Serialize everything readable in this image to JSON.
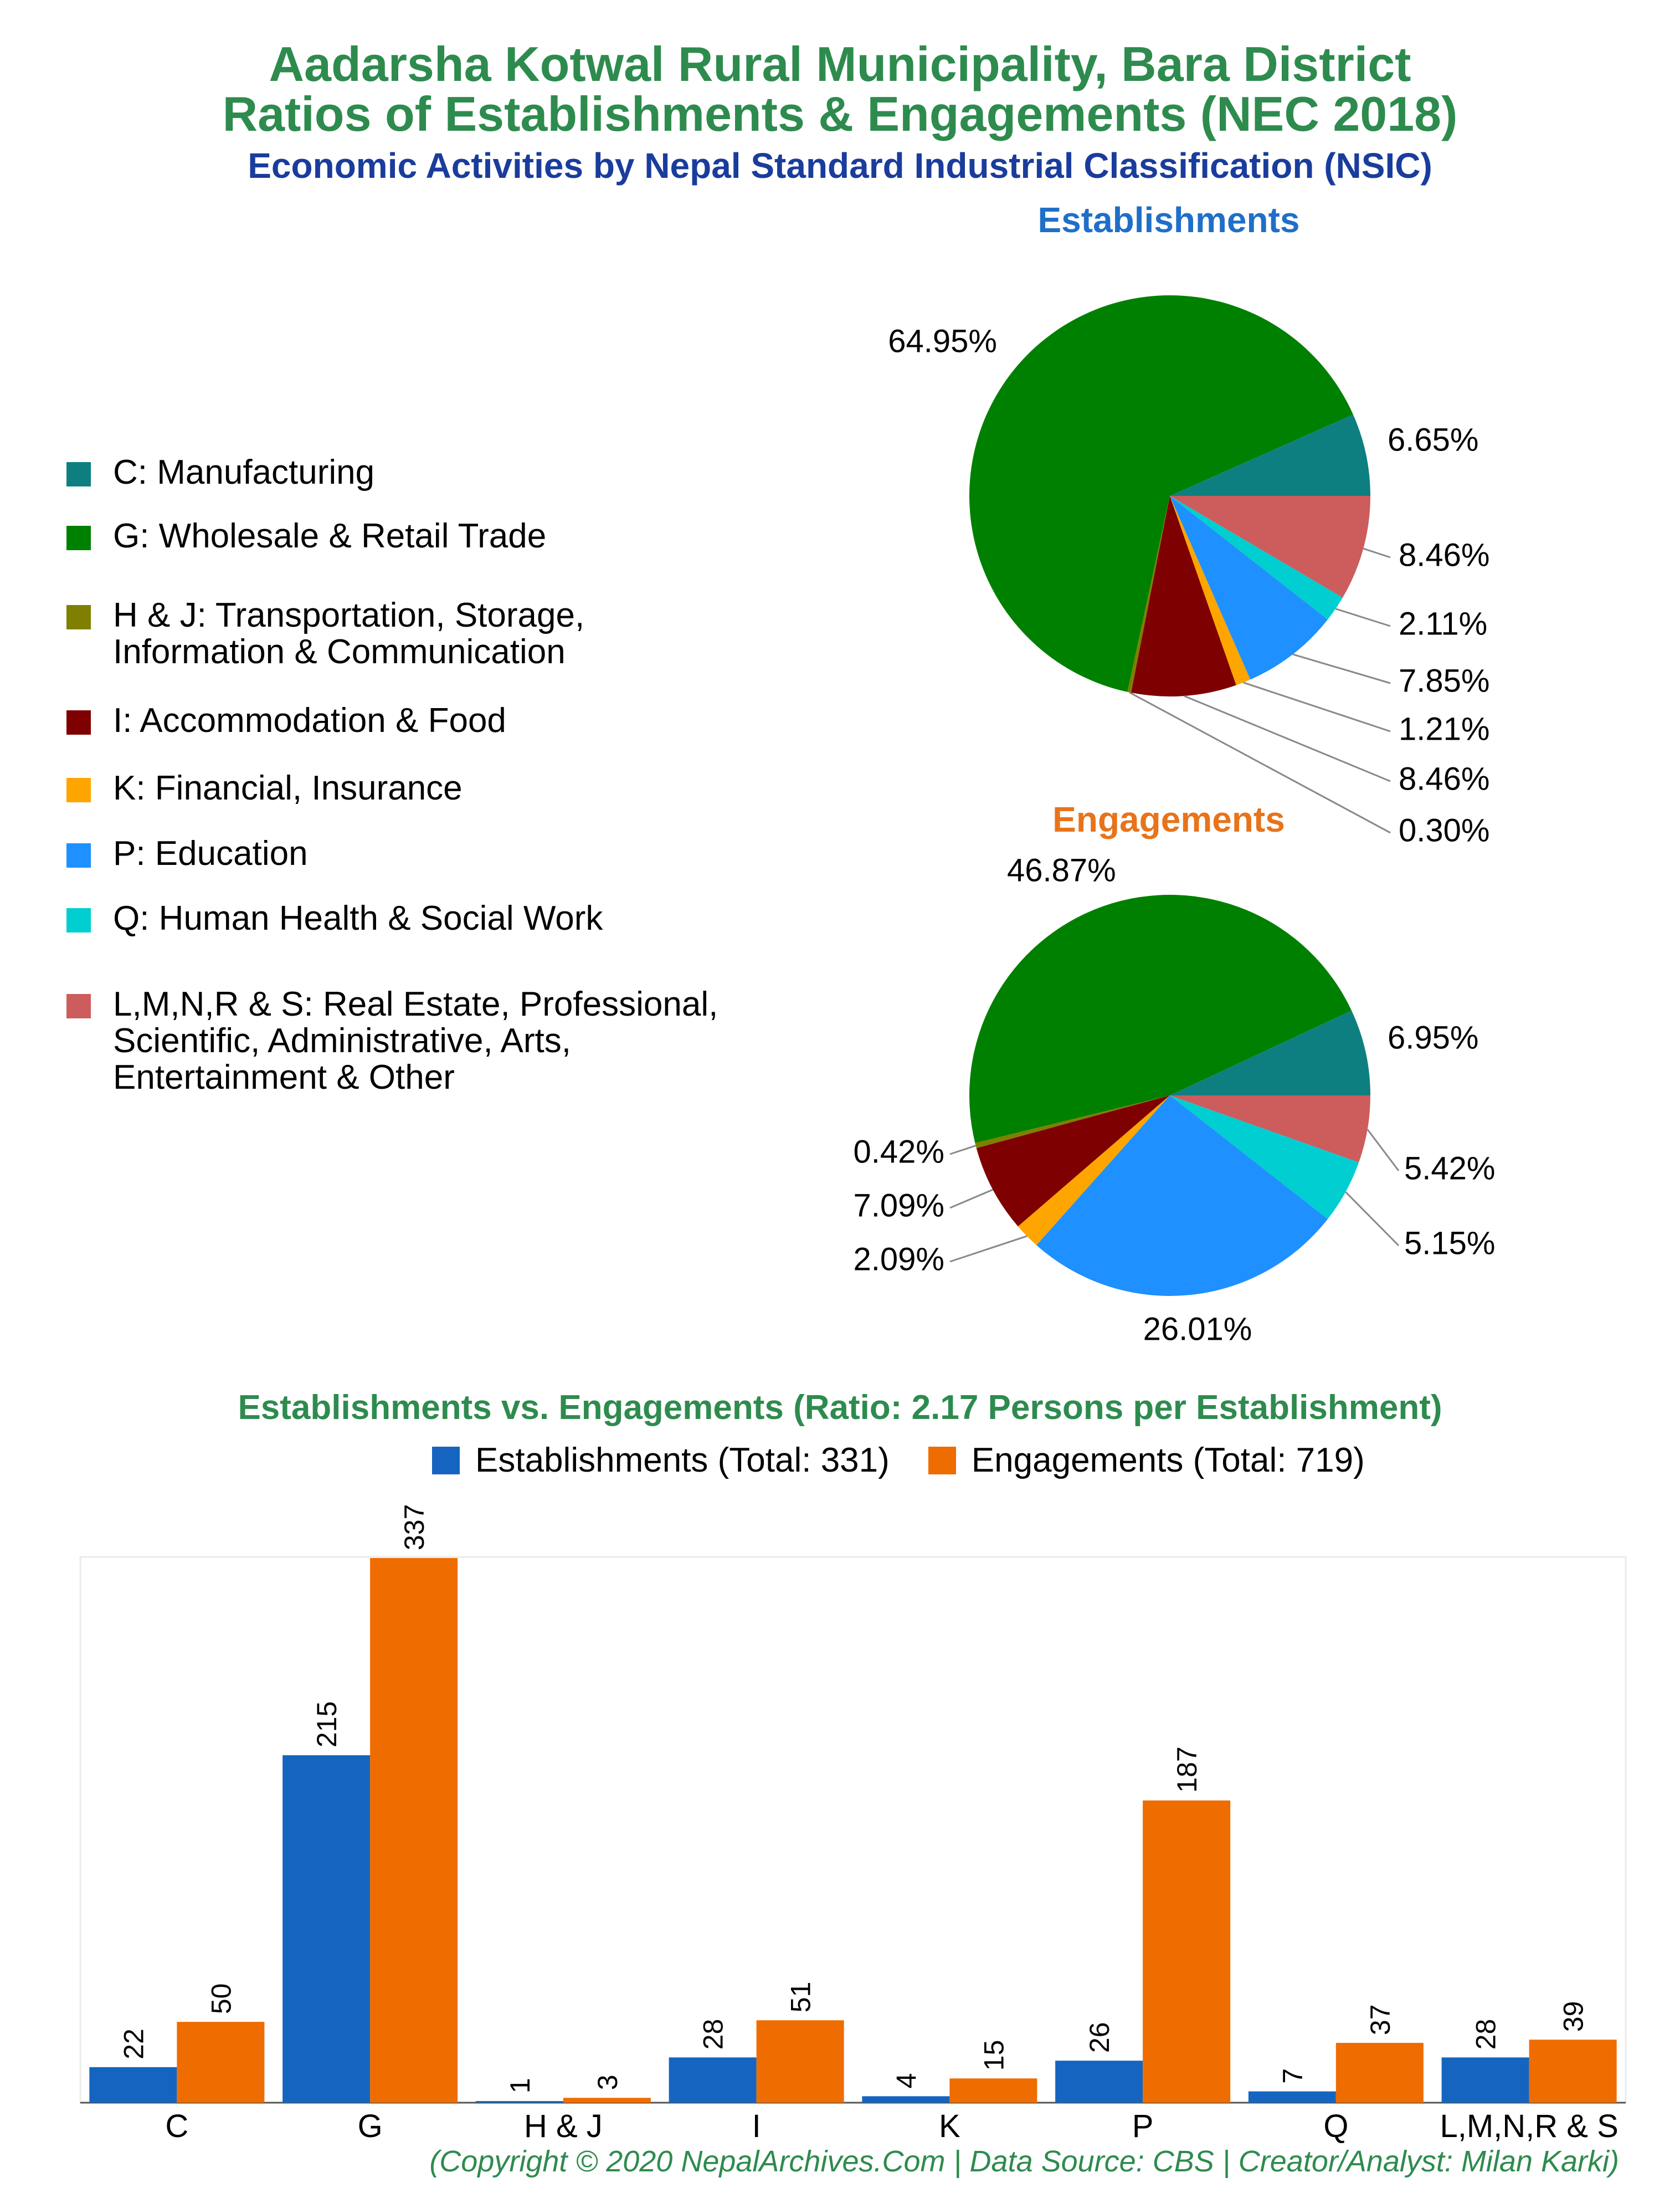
{
  "header": {
    "title_line1": "Aadarsha Kotwal Rural Municipality, Bara District",
    "title_line2": "Ratios of Establishments & Engagements (NEC 2018)",
    "subtitle": "Economic Activities by Nepal Standard Industrial Classification (NSIC)"
  },
  "legend": [
    {
      "label": "C: Manufacturing",
      "color": "#0e7f80"
    },
    {
      "label": "G: Wholesale & Retail Trade",
      "color": "#008000"
    },
    {
      "label": "H & J: Transportation, Storage,\nInformation & Communication",
      "color": "#7f7f00"
    },
    {
      "label": "I: Accommodation & Food",
      "color": "#7f0000"
    },
    {
      "label": "K: Financial, Insurance",
      "color": "#ffa500"
    },
    {
      "label": "P: Education",
      "color": "#1e90ff"
    },
    {
      "label": "Q: Human Health & Social Work",
      "color": "#00ced1"
    },
    {
      "label": "L,M,N,R & S: Real Estate, Professional,\nScientific, Administrative, Arts,\nEntertainment & Other",
      "color": "#cd5c5c"
    }
  ],
  "chart_data": [
    {
      "type": "pie",
      "title": "Establishments",
      "title_color": "#1f6fc9",
      "categories": [
        "C",
        "G",
        "H & J",
        "I",
        "K",
        "P",
        "Q",
        "L,M,N,R & S"
      ],
      "values": [
        6.65,
        64.95,
        0.3,
        8.46,
        1.21,
        7.85,
        2.11,
        8.46
      ],
      "labels": [
        "6.65%",
        "64.95%",
        "0.30%",
        "8.46%",
        "1.21%",
        "7.85%",
        "2.11%",
        "8.46%"
      ]
    },
    {
      "type": "pie",
      "title": "Engagements",
      "title_color": "#e8731a",
      "categories": [
        "C",
        "G",
        "H & J",
        "I",
        "K",
        "P",
        "Q",
        "L,M,N,R & S"
      ],
      "values": [
        6.95,
        46.87,
        0.42,
        7.09,
        2.09,
        26.01,
        5.15,
        5.42
      ],
      "labels": [
        "6.95%",
        "46.87%",
        "0.42%",
        "7.09%",
        "2.09%",
        "26.01%",
        "5.15%",
        "5.42%"
      ]
    },
    {
      "type": "bar",
      "title": "Establishments vs. Engagements (Ratio: 2.17 Persons per Establishment)",
      "categories": [
        "C",
        "G",
        "H & J",
        "I",
        "K",
        "P",
        "Q",
        "L,M,N,R & S"
      ],
      "series": [
        {
          "name": "Establishments (Total: 331)",
          "color": "#1565c0",
          "values": [
            22,
            215,
            1,
            28,
            4,
            26,
            7,
            28
          ]
        },
        {
          "name": "Engagements (Total: 719)",
          "color": "#ef6c00",
          "values": [
            50,
            337,
            3,
            51,
            15,
            187,
            37,
            39
          ]
        }
      ],
      "ylim": [
        0,
        337
      ],
      "grid": false
    }
  ],
  "footer": {
    "copyright": "(Copyright © 2020 NepalArchives.Com | Data Source: CBS | Creator/Analyst: Milan Karki)"
  }
}
